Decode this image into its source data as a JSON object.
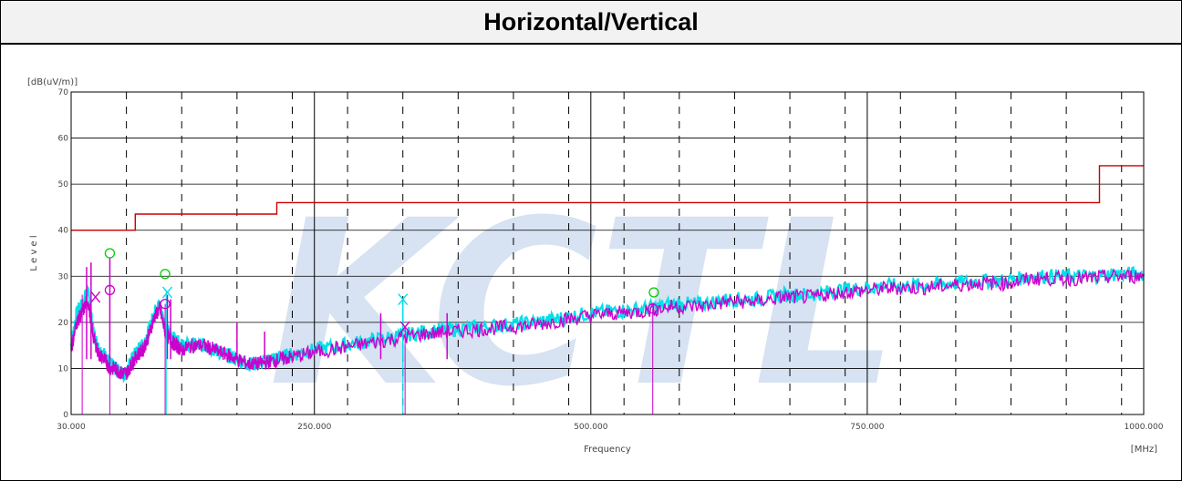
{
  "title": "Horizontal/Vertical",
  "chart_data": {
    "type": "line",
    "title": "Horizontal/Vertical",
    "ylabel_unit": "[dB(uV/m)]",
    "ylabel": "L e v e l",
    "xlabel": "Frequency",
    "xlabel_unit": "[MHz]",
    "xlim": [
      30,
      1000
    ],
    "ylim": [
      0,
      70
    ],
    "x_ticks": [
      {
        "value": 30,
        "label": "30.000"
      },
      {
        "value": 250,
        "label": "250.000"
      },
      {
        "value": 500,
        "label": "500.000"
      },
      {
        "value": 750,
        "label": "750.000"
      },
      {
        "value": 1000,
        "label": "1000.000"
      }
    ],
    "y_ticks": [
      {
        "value": 0,
        "label": "0"
      },
      {
        "value": 10,
        "label": "10"
      },
      {
        "value": 20,
        "label": "20"
      },
      {
        "value": 30,
        "label": "30"
      },
      {
        "value": 40,
        "label": "40"
      },
      {
        "value": 50,
        "label": "50"
      },
      {
        "value": 60,
        "label": "60"
      },
      {
        "value": 70,
        "label": "70"
      }
    ],
    "grid": true,
    "watermark": "KCTL",
    "colors": {
      "limit": "#cc0000",
      "magenta": "#cc00cc",
      "cyan": "#00e0e8",
      "green": "#00cc00",
      "grid": "#000000"
    },
    "limit_line": {
      "x": [
        30,
        88,
        88,
        216,
        216,
        960,
        960,
        1000
      ],
      "y": [
        40,
        40,
        43.5,
        43.5,
        46,
        46,
        54,
        54
      ]
    },
    "series": [
      {
        "color_key": "cyan",
        "x": [
          30,
          35,
          40,
          45,
          50,
          55,
          60,
          65,
          70,
          75,
          80,
          85,
          90,
          95,
          100,
          105,
          110,
          115,
          120,
          125,
          130,
          140,
          150,
          160,
          170,
          180,
          190,
          200,
          210,
          220,
          230,
          250,
          275,
          300,
          325,
          350,
          375,
          400,
          425,
          450,
          475,
          500,
          525,
          550,
          575,
          600,
          625,
          650,
          675,
          700,
          725,
          750,
          775,
          800,
          825,
          850,
          875,
          900,
          925,
          950,
          975,
          1000
        ],
        "y": [
          15,
          22,
          24,
          27,
          18,
          14,
          13,
          11,
          10,
          9,
          9,
          12,
          14,
          15,
          18,
          22,
          24,
          19,
          17,
          16,
          15,
          15,
          15,
          14,
          13,
          12,
          11,
          11,
          12,
          12.5,
          13,
          14,
          15,
          16,
          17,
          18,
          18.5,
          19,
          19.5,
          20,
          21,
          22,
          22.5,
          23,
          24,
          24,
          25,
          25,
          26,
          26,
          27,
          27.5,
          28,
          28,
          28.5,
          29,
          29,
          30,
          30,
          30,
          30.5,
          30.5
        ]
      },
      {
        "color_key": "magenta",
        "x": [
          30,
          35,
          40,
          45,
          50,
          55,
          60,
          65,
          70,
          75,
          80,
          85,
          90,
          95,
          100,
          105,
          110,
          115,
          120,
          125,
          130,
          140,
          150,
          160,
          170,
          180,
          190,
          200,
          210,
          220,
          230,
          250,
          275,
          300,
          325,
          350,
          375,
          400,
          425,
          450,
          475,
          500,
          525,
          550,
          575,
          600,
          625,
          650,
          675,
          700,
          725,
          750,
          775,
          800,
          825,
          850,
          875,
          900,
          925,
          950,
          975,
          1000
        ],
        "y": [
          14,
          20,
          22,
          25,
          17,
          13,
          12,
          10,
          10,
          9,
          9,
          11,
          13,
          14,
          17,
          21,
          23,
          18,
          16,
          15,
          14,
          15,
          15,
          14,
          13,
          12,
          11,
          11,
          11.5,
          12,
          12.5,
          13.5,
          14.5,
          15.5,
          16.5,
          17.5,
          18,
          18.5,
          19,
          19.5,
          20.5,
          21.5,
          22,
          22.5,
          23.5,
          23.5,
          24.5,
          24.5,
          25.5,
          25.5,
          26.5,
          27,
          27.5,
          27.5,
          28,
          28.5,
          28.5,
          29.5,
          29.5,
          29.5,
          30,
          30
        ]
      }
    ],
    "spikes": [
      {
        "x": 44,
        "top": 32,
        "color_key": "magenta"
      },
      {
        "x": 48,
        "top": 33,
        "color_key": "magenta"
      },
      {
        "x": 65,
        "top": 34,
        "color_key": "magenta"
      },
      {
        "x": 117,
        "top": 26,
        "color_key": "magenta"
      },
      {
        "x": 120,
        "top": 25,
        "color_key": "magenta"
      },
      {
        "x": 180,
        "top": 20,
        "color_key": "magenta"
      },
      {
        "x": 205,
        "top": 18,
        "color_key": "magenta"
      },
      {
        "x": 310,
        "top": 22,
        "color_key": "magenta"
      },
      {
        "x": 330,
        "top": 25,
        "color_key": "cyan"
      },
      {
        "x": 370,
        "top": 22,
        "color_key": "magenta"
      }
    ],
    "marker_lines": [
      {
        "x": 40,
        "top": 26,
        "color_key": "magenta"
      },
      {
        "x": 65,
        "top": 27,
        "color_key": "magenta"
      },
      {
        "x": 115,
        "top": 24,
        "color_key": "magenta"
      },
      {
        "x": 116,
        "top": 27,
        "color_key": "cyan"
      },
      {
        "x": 330,
        "top": 25,
        "color_key": "cyan"
      },
      {
        "x": 332,
        "top": 19,
        "color_key": "magenta"
      },
      {
        "x": 556,
        "top": 23,
        "color_key": "magenta"
      }
    ],
    "markers": [
      {
        "x": 65,
        "y": 35,
        "shape": "circle",
        "color_key": "green"
      },
      {
        "x": 115,
        "y": 30.5,
        "shape": "circle",
        "color_key": "green"
      },
      {
        "x": 557,
        "y": 26.5,
        "shape": "circle",
        "color_key": "green"
      },
      {
        "x": 65,
        "y": 27,
        "shape": "circle",
        "color_key": "magenta"
      },
      {
        "x": 115,
        "y": 24,
        "shape": "circle",
        "color_key": "magenta"
      },
      {
        "x": 556,
        "y": 23,
        "shape": "circle",
        "color_key": "magenta"
      },
      {
        "x": 52,
        "y": 25.5,
        "shape": "x",
        "color_key": "magenta"
      },
      {
        "x": 117,
        "y": 26.5,
        "shape": "x",
        "color_key": "cyan"
      },
      {
        "x": 330,
        "y": 25,
        "shape": "x",
        "color_key": "cyan"
      },
      {
        "x": 332,
        "y": 19,
        "shape": "x",
        "color_key": "magenta"
      }
    ]
  }
}
